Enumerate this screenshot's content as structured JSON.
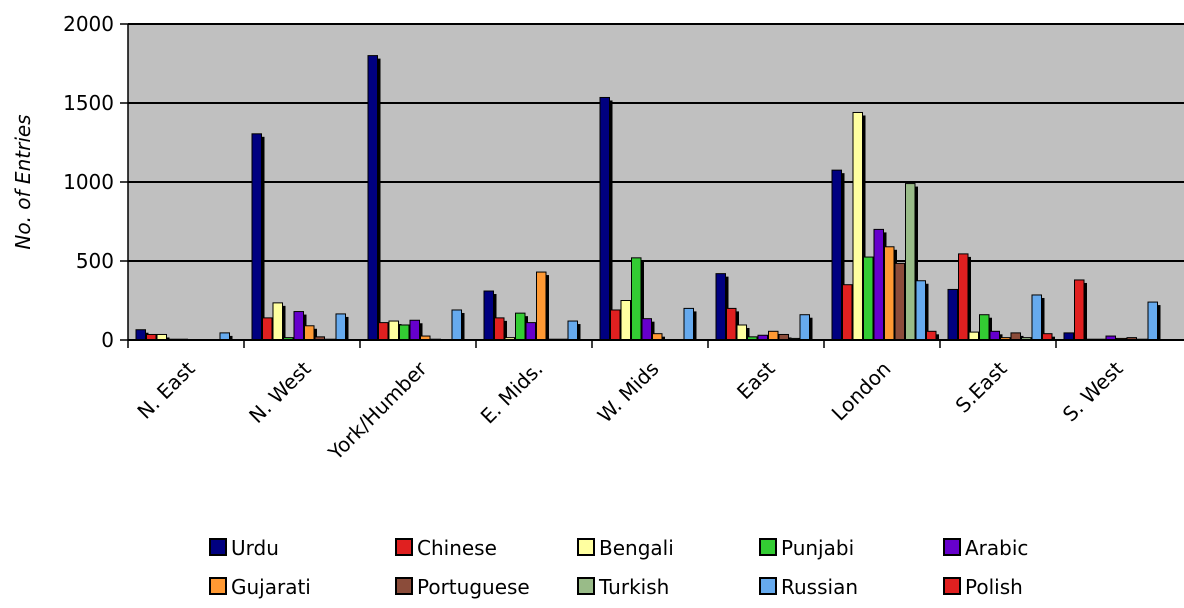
{
  "chart_data": {
    "type": "bar",
    "title": "",
    "xlabel": "",
    "ylabel": "No. of Entries",
    "ylim": [
      0,
      2000
    ],
    "yticks": [
      "0",
      "500",
      "1000",
      "1500",
      "2000"
    ],
    "grid": "horizontal",
    "legend_position": "bottom",
    "plot_background": "#c0c0c0",
    "categories": [
      "N. East",
      "N. West",
      "York/Humber",
      "E. Mids.",
      "W. Mids",
      "East",
      "London",
      "S.East",
      "S. West"
    ],
    "series": [
      {
        "name": "Urdu",
        "color": "#000080",
        "values": [
          65,
          1305,
          1800,
          310,
          1535,
          420,
          1075,
          320,
          45
        ]
      },
      {
        "name": "Chinese",
        "color": "#e02020",
        "values": [
          35,
          140,
          110,
          140,
          190,
          200,
          350,
          545,
          380
        ]
      },
      {
        "name": "Bengali",
        "color": "#ffffa0",
        "values": [
          35,
          235,
          120,
          15,
          250,
          95,
          1440,
          50,
          5
        ]
      },
      {
        "name": "Punjabi",
        "color": "#33cc33",
        "values": [
          5,
          15,
          95,
          170,
          520,
          20,
          525,
          160,
          5
        ]
      },
      {
        "name": "Arabic",
        "color": "#6600cc",
        "values": [
          5,
          180,
          125,
          110,
          135,
          30,
          700,
          55,
          25
        ]
      },
      {
        "name": "Gujarati",
        "color": "#ff9933",
        "values": [
          0,
          90,
          25,
          430,
          40,
          55,
          590,
          15,
          10
        ]
      },
      {
        "name": "Portuguese",
        "color": "#8b4c3a",
        "values": [
          0,
          20,
          5,
          5,
          0,
          35,
          485,
          45,
          15
        ]
      },
      {
        "name": "Turkish",
        "color": "#99bb88",
        "values": [
          0,
          5,
          0,
          5,
          0,
          10,
          990,
          15,
          5
        ]
      },
      {
        "name": "Russian",
        "color": "#66aaee",
        "values": [
          45,
          165,
          190,
          120,
          200,
          160,
          375,
          285,
          240
        ]
      },
      {
        "name": "Polish",
        "color": "#e02020",
        "values": [
          0,
          0,
          0,
          0,
          0,
          0,
          55,
          40,
          0
        ]
      }
    ]
  }
}
